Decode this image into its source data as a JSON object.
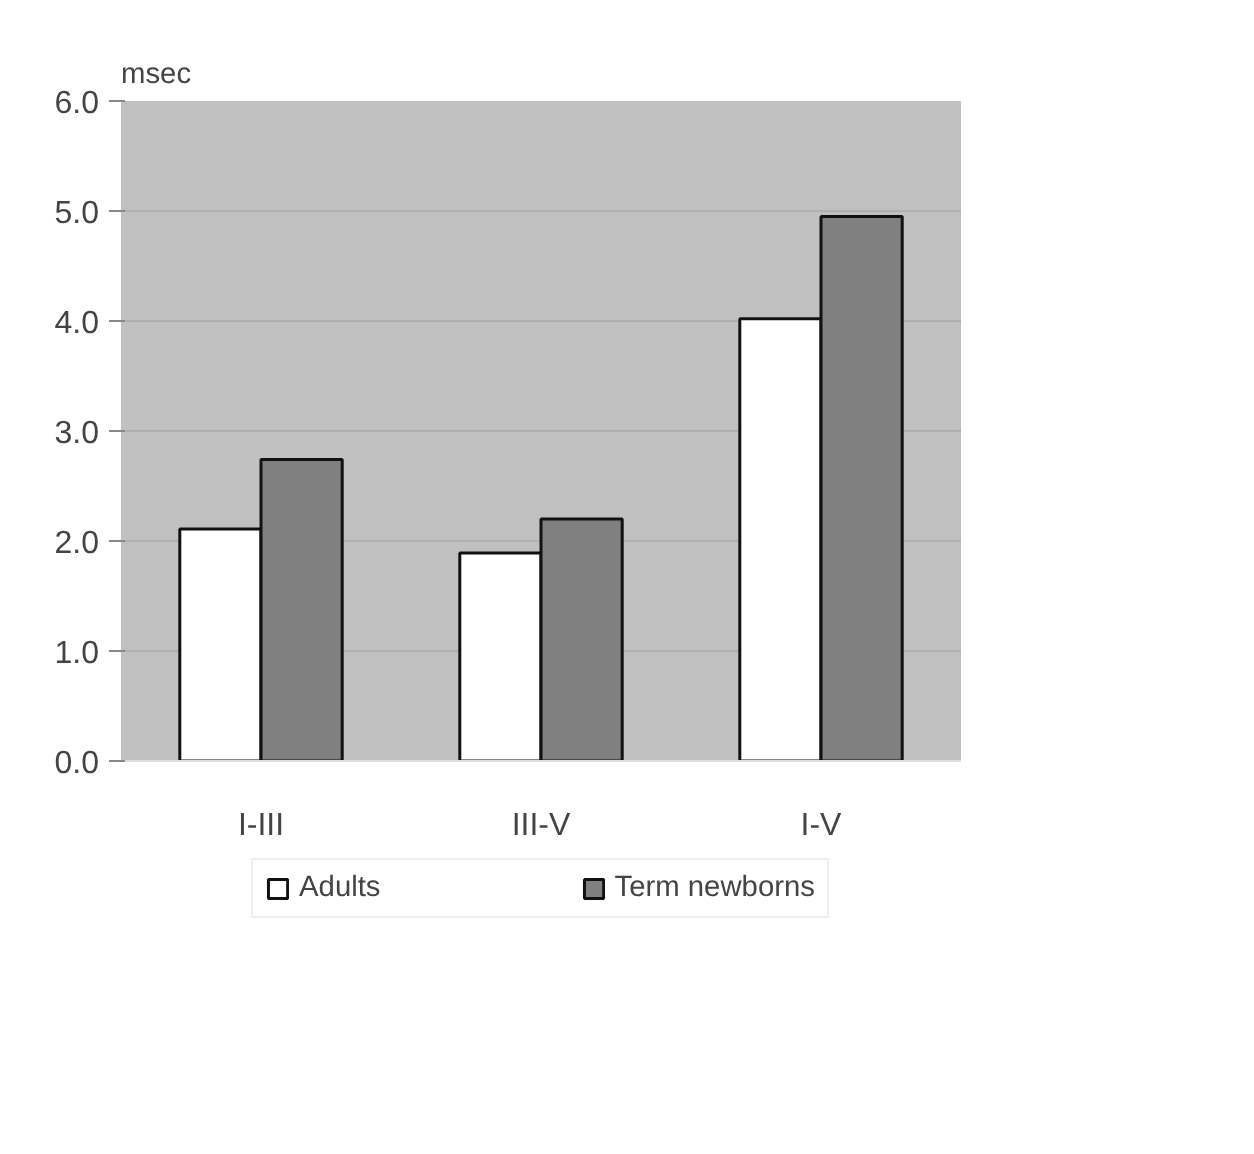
{
  "chart_data": {
    "type": "bar",
    "ylabel": "msec",
    "categories": [
      "I-III",
      "III-V",
      "I-V"
    ],
    "series": [
      {
        "name": "Adults",
        "color": "#ffffff",
        "values": [
          2.11,
          1.89,
          4.02
        ]
      },
      {
        "name": "Term newborns",
        "color": "#808080",
        "values": [
          2.74,
          2.2,
          4.95
        ]
      }
    ],
    "ylim": [
      0,
      6
    ],
    "yticks": [
      {
        "value": 0,
        "label": "0.0"
      },
      {
        "value": 1,
        "label": "1.0"
      },
      {
        "value": 2,
        "label": "2.0"
      },
      {
        "value": 3,
        "label": "3.0"
      },
      {
        "value": 4,
        "label": "4.0"
      },
      {
        "value": 5,
        "label": "5.0"
      },
      {
        "value": 6,
        "label": "6.0"
      }
    ],
    "grid": "y",
    "legend": "bottom"
  }
}
